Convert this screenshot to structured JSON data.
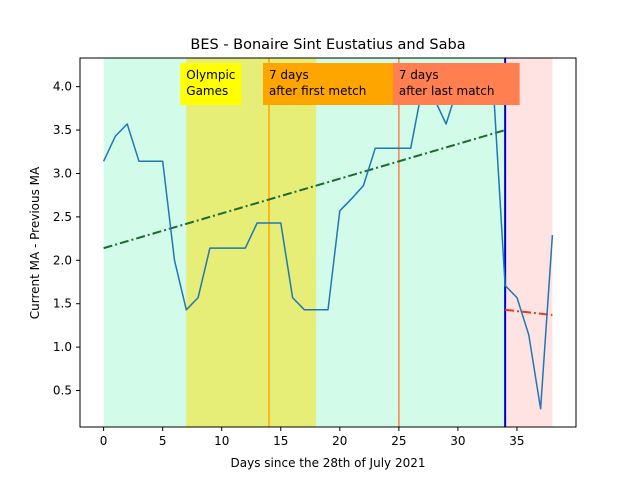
{
  "chart_data": {
    "type": "line",
    "title": "BES - Bonaire Sint Eustatius and Saba",
    "xlabel": "Days since the 28th of July 2021",
    "ylabel": "Current MA - Previous MA",
    "xlim": [
      -2,
      40
    ],
    "ylim": [
      0.08,
      4.33
    ],
    "xticks": [
      0,
      5,
      10,
      15,
      20,
      25,
      30,
      35
    ],
    "yticks": [
      0.5,
      1.0,
      1.5,
      2.0,
      2.5,
      3.0,
      3.5,
      4.0
    ],
    "ytick_labels": [
      "0.5",
      "1.0",
      "1.5",
      "2.0",
      "2.5",
      "3.0",
      "3.5",
      "4.0"
    ],
    "grid": false,
    "series": [
      {
        "color": "#1f77b4",
        "x": [
          0,
          1,
          2,
          3,
          4,
          5,
          6,
          7,
          8,
          9,
          10,
          11,
          12,
          13,
          14,
          15,
          16,
          17,
          18,
          19,
          20,
          21,
          22,
          23,
          24,
          25,
          26,
          27,
          28,
          29,
          30,
          31,
          32,
          33,
          34,
          35,
          36,
          37,
          38
        ],
        "values": [
          3.14,
          3.43,
          3.57,
          3.14,
          3.14,
          3.14,
          2.0,
          1.43,
          1.57,
          2.14,
          2.14,
          2.14,
          2.14,
          2.43,
          2.43,
          2.43,
          1.57,
          1.43,
          1.43,
          1.43,
          2.57,
          2.71,
          2.86,
          3.29,
          3.29,
          3.29,
          3.29,
          4.0,
          3.86,
          3.57,
          4.0,
          4.0,
          4.0,
          4.0,
          1.71,
          1.57,
          1.14,
          0.29,
          2.29
        ]
      }
    ],
    "trend_lines": [
      {
        "color": "#1a6b2e",
        "style": "dash-dot",
        "x": [
          0,
          34
        ],
        "y": [
          2.14,
          3.5
        ]
      },
      {
        "color": "#e8382a",
        "style": "dash-dot",
        "x": [
          34,
          38
        ],
        "y": [
          1.43,
          1.37
        ]
      }
    ],
    "regions": [
      {
        "x": [
          0,
          34
        ],
        "color": "#d2fbea"
      },
      {
        "x": [
          7,
          18
        ],
        "color": "#e6ee78"
      },
      {
        "x": [
          34,
          38
        ],
        "color": "#ffe3e3"
      }
    ],
    "vlines": [
      {
        "x": 14,
        "color": "#ffa500"
      },
      {
        "x": 25,
        "color": "#ff7f50"
      },
      {
        "x": 34,
        "color": "#0000cc"
      }
    ],
    "annotations": [
      {
        "lines": [
          "Olympic",
          "Games"
        ],
        "x": 7,
        "bg": "#ffff00"
      },
      {
        "lines": [
          "7 days",
          "after first metch"
        ],
        "x": 14,
        "bg": "#ffa500"
      },
      {
        "lines": [
          "7 days",
          "after last match"
        ],
        "x": 25,
        "bg": "#ff7f50"
      }
    ]
  }
}
